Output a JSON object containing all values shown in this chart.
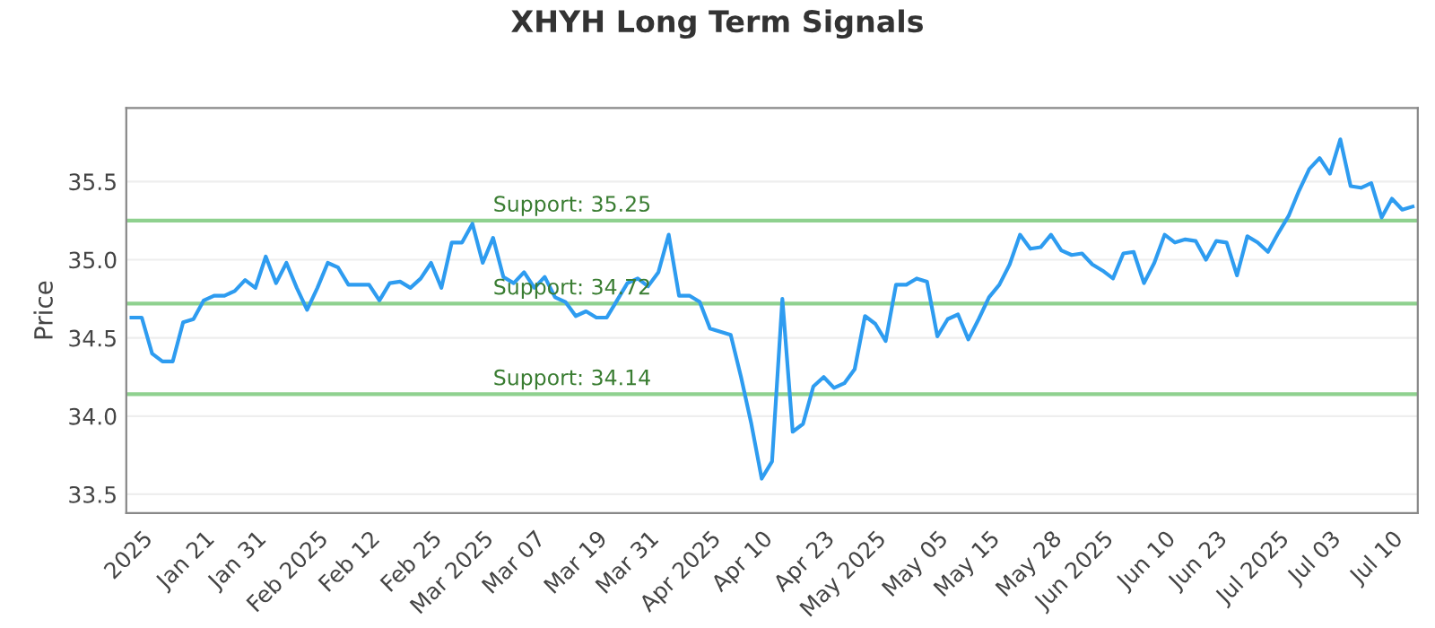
{
  "chart_data": {
    "type": "line",
    "title": "XHYH Long Term Signals",
    "ylabel": "Price",
    "categories": [
      null,
      "2025",
      null,
      null,
      null,
      null,
      null,
      "Jan 21",
      null,
      null,
      null,
      null,
      "Jan 31",
      null,
      null,
      null,
      null,
      null,
      "Feb 2025",
      null,
      null,
      null,
      null,
      "Feb 12",
      null,
      null,
      null,
      null,
      null,
      "Feb 25",
      null,
      null,
      null,
      null,
      "Mar 2025",
      null,
      null,
      null,
      null,
      "Mar 07",
      null,
      null,
      null,
      null,
      null,
      "Mar 19",
      null,
      null,
      null,
      null,
      "Mar 31",
      null,
      null,
      null,
      null,
      null,
      "Apr 2025",
      null,
      null,
      null,
      null,
      "Apr 10",
      null,
      null,
      null,
      null,
      null,
      "Apr 23",
      null,
      null,
      null,
      null,
      "May 2025",
      null,
      null,
      null,
      null,
      null,
      "May 05",
      null,
      null,
      null,
      null,
      "May 15",
      null,
      null,
      null,
      null,
      null,
      "May 28",
      null,
      null,
      null,
      null,
      "Jun 2025",
      null,
      null,
      null,
      null,
      null,
      "Jun 10",
      null,
      null,
      null,
      null,
      "Jun 23",
      null,
      null,
      null,
      null,
      null,
      "Jul 2025",
      null,
      null,
      null,
      null,
      "Jul 03",
      null,
      null,
      null,
      null,
      null,
      "Jul 10",
      null,
      null
    ],
    "series": [
      {
        "color": "#2e9cf0",
        "values": [
          34.63,
          34.63,
          34.4,
          34.35,
          34.35,
          34.6,
          34.62,
          34.74,
          34.77,
          34.77,
          34.8,
          34.87,
          34.82,
          35.02,
          34.85,
          34.98,
          34.82,
          34.68,
          34.82,
          34.98,
          34.95,
          34.84,
          34.84,
          34.84,
          34.74,
          34.85,
          34.86,
          34.82,
          34.88,
          34.98,
          34.82,
          35.11,
          35.11,
          35.23,
          34.98,
          35.14,
          34.89,
          34.85,
          34.92,
          34.82,
          34.89,
          34.76,
          34.73,
          34.64,
          34.67,
          34.63,
          34.63,
          34.74,
          34.85,
          34.88,
          34.83,
          34.92,
          35.16,
          34.77,
          34.77,
          34.73,
          34.56,
          34.54,
          34.52,
          34.25,
          33.95,
          33.6,
          33.71,
          34.75,
          33.9,
          33.95,
          34.19,
          34.25,
          34.18,
          34.21,
          34.3,
          34.64,
          34.59,
          34.48,
          34.84,
          34.84,
          34.88,
          34.86,
          34.51,
          34.62,
          34.65,
          34.49,
          34.62,
          34.76,
          34.84,
          34.97,
          35.16,
          35.07,
          35.08,
          35.16,
          35.06,
          35.03,
          35.04,
          34.97,
          34.93,
          34.88,
          35.04,
          35.05,
          34.85,
          34.98,
          35.16,
          35.11,
          35.13,
          35.12,
          35.0,
          35.12,
          35.11,
          34.9,
          35.15,
          35.11,
          35.05,
          35.17,
          35.28,
          35.44,
          35.58,
          35.65,
          35.55,
          35.77,
          35.47,
          35.46,
          35.49,
          35.27,
          35.39,
          35.32,
          35.34
        ]
      }
    ],
    "ylim": [
      33.38,
      35.97
    ],
    "yticks": [
      {
        "value": 33.5,
        "label": "33.5"
      },
      {
        "value": 34,
        "label": "34.0"
      },
      {
        "value": 34.5,
        "label": "34.5"
      },
      {
        "value": 35,
        "label": "35.0"
      },
      {
        "value": 35.5,
        "label": "35.5"
      }
    ],
    "grid": "y",
    "line_style": "solid",
    "marker": "none",
    "ref_lines": [
      {
        "axis": "y",
        "value": 35.25,
        "label": "Support: 35.25",
        "color": "#8fd18f"
      },
      {
        "axis": "y",
        "value": 34.72,
        "label": "Support: 34.72",
        "color": "#8fd18f"
      },
      {
        "axis": "y",
        "value": 34.14,
        "label": "Support: 34.14",
        "color": "#8fd18f"
      }
    ]
  }
}
